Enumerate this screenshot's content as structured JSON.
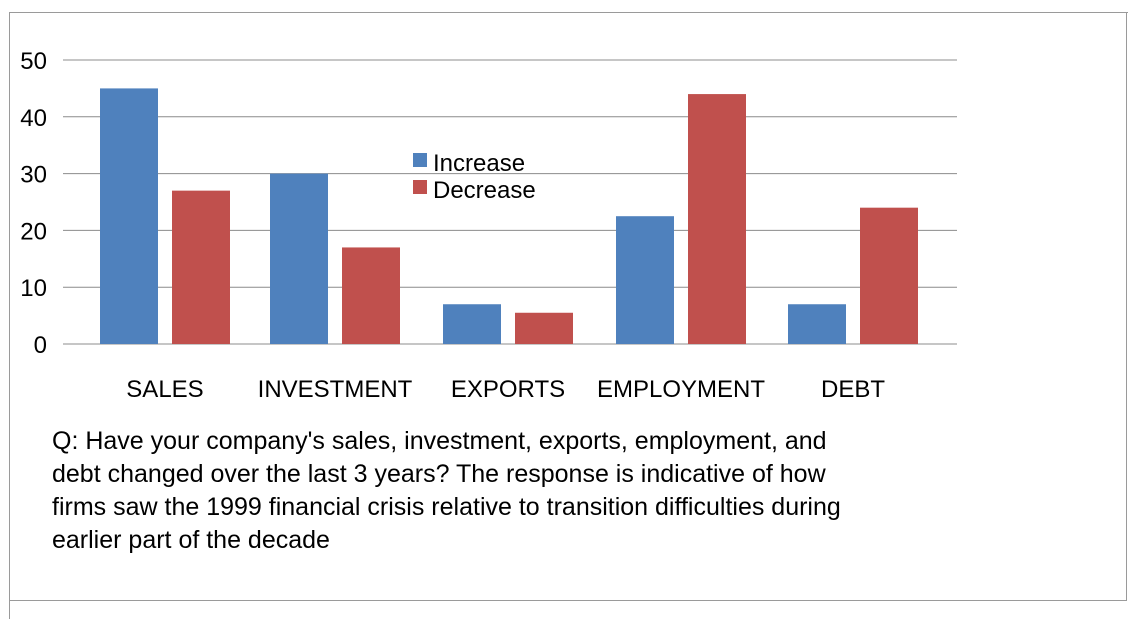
{
  "chart_data": {
    "type": "bar",
    "categories": [
      "SALES",
      "INVESTMENT",
      "EXPORTS",
      "EMPLOYMENT",
      "DEBT"
    ],
    "series": [
      {
        "name": "Increase",
        "color": "#4f81bd",
        "values": [
          45,
          30,
          7,
          22.5,
          7
        ]
      },
      {
        "name": "Decrease",
        "color": "#c0504d",
        "values": [
          27,
          17,
          5.5,
          44,
          24
        ]
      }
    ],
    "ylim": [
      0,
      50
    ],
    "yticks": [
      "0",
      "10",
      "20",
      "30",
      "40",
      "50"
    ],
    "grid": true,
    "legend_position": "center"
  },
  "caption_lines": [
    "Q: Have your company's sales, investment, exports, employment, and",
    "debt changed over the last 3 years?  The response is indicative of how",
    "firms saw the 1999 financial crisis relative to  transition difficulties during",
    "earlier part of the decade"
  ]
}
